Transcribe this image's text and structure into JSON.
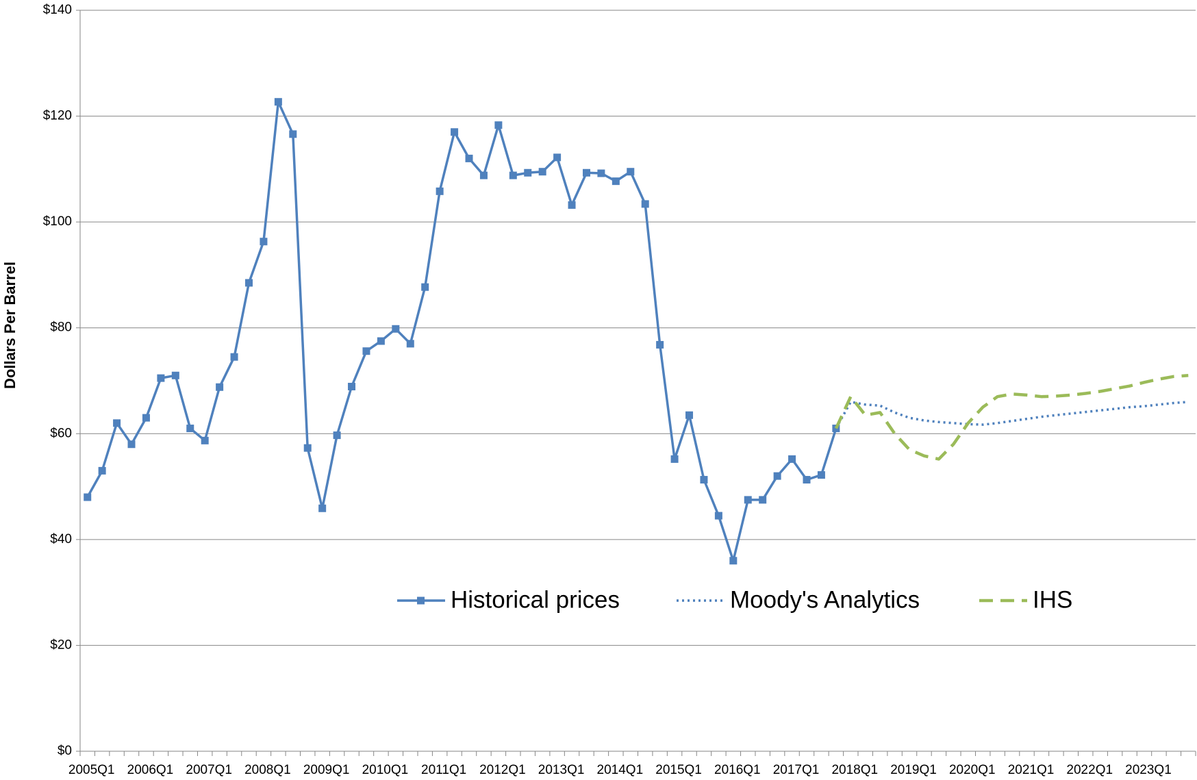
{
  "chart_data": {
    "type": "line",
    "y_label": "Dollars Per Barrel",
    "categories": [
      "2005Q1",
      null,
      null,
      null,
      "2006Q1",
      null,
      null,
      null,
      "2007Q1",
      null,
      null,
      null,
      "2008Q1",
      null,
      null,
      null,
      "2009Q1",
      null,
      null,
      null,
      "2010Q1",
      null,
      null,
      null,
      "2011Q1",
      null,
      null,
      null,
      "2012Q1",
      null,
      null,
      null,
      "2013Q1",
      null,
      null,
      null,
      "2014Q1",
      null,
      null,
      null,
      "2015Q1",
      null,
      null,
      null,
      "2016Q1",
      null,
      null,
      null,
      "2017Q1",
      null,
      null,
      null,
      "2018Q1",
      null,
      null,
      null,
      "2019Q1",
      null,
      null,
      null,
      "2020Q1",
      null,
      null,
      null,
      "2021Q1",
      null,
      null,
      null,
      "2022Q1",
      null,
      null,
      null,
      "2023Q1",
      null,
      null,
      null
    ],
    "series": [
      {
        "name": "Historical prices",
        "color": "#4f81bd",
        "style": "solid",
        "marker": "square",
        "values": [
          48,
          53,
          62,
          58,
          63,
          70.5,
          71,
          61,
          58.7,
          68.8,
          74.5,
          88.5,
          96.3,
          122.7,
          116.6,
          57.3,
          45.9,
          59.7,
          68.9,
          75.6,
          77.5,
          79.8,
          77,
          87.7,
          105.8,
          117,
          112,
          108.8,
          118.3,
          108.8,
          109.3,
          109.5,
          112.2,
          103.2,
          109.3,
          109.2,
          107.7,
          109.5,
          103.4,
          76.8,
          55.2,
          63.5,
          51.3,
          44.5,
          36,
          47.5,
          47.5,
          52,
          55.2,
          51.3,
          52.2,
          61,
          null,
          null,
          null,
          null,
          null,
          null,
          null,
          null,
          null,
          null,
          null,
          null,
          null,
          null,
          null,
          null,
          null,
          null,
          null,
          null,
          null,
          null,
          null,
          null
        ]
      },
      {
        "name": "Moody's Analytics",
        "color": "#4f81bd",
        "style": "dotted",
        "marker": "none",
        "values": [
          null,
          null,
          null,
          null,
          null,
          null,
          null,
          null,
          null,
          null,
          null,
          null,
          null,
          null,
          null,
          null,
          null,
          null,
          null,
          null,
          null,
          null,
          null,
          null,
          null,
          null,
          null,
          null,
          null,
          null,
          null,
          null,
          null,
          null,
          null,
          null,
          null,
          null,
          null,
          null,
          null,
          null,
          null,
          null,
          null,
          null,
          null,
          null,
          null,
          null,
          null,
          61,
          66,
          65.5,
          65.3,
          64,
          63,
          62.5,
          62.2,
          62,
          61.8,
          61.7,
          62,
          62.4,
          62.8,
          63.2,
          63.5,
          63.8,
          64.1,
          64.4,
          64.7,
          65,
          65.2,
          65.5,
          65.8,
          66
        ]
      },
      {
        "name": "IHS",
        "color": "#9bbb59",
        "style": "dashed",
        "marker": "none",
        "values": [
          null,
          null,
          null,
          null,
          null,
          null,
          null,
          null,
          null,
          null,
          null,
          null,
          null,
          null,
          null,
          null,
          null,
          null,
          null,
          null,
          null,
          null,
          null,
          null,
          null,
          null,
          null,
          null,
          null,
          null,
          null,
          null,
          null,
          null,
          null,
          null,
          null,
          null,
          null,
          null,
          null,
          null,
          null,
          null,
          null,
          null,
          null,
          null,
          null,
          null,
          null,
          61,
          67,
          63.5,
          64,
          60,
          57,
          55.8,
          55.2,
          58,
          62,
          65,
          67,
          67.5,
          67.3,
          67,
          67.1,
          67.3,
          67.6,
          68,
          68.5,
          69,
          69.7,
          70.3,
          70.8,
          71
        ]
      }
    ],
    "ylim": [
      0,
      140
    ],
    "yticks": [
      {
        "value": 0,
        "label": "$0"
      },
      {
        "value": 20,
        "label": "$20"
      },
      {
        "value": 40,
        "label": "$40"
      },
      {
        "value": 60,
        "label": "$60"
      },
      {
        "value": 80,
        "label": "$80"
      },
      {
        "value": 100,
        "label": "$100"
      },
      {
        "value": 120,
        "label": "$120"
      },
      {
        "value": 140,
        "label": "$140"
      }
    ],
    "grid": true,
    "legend": "center"
  }
}
